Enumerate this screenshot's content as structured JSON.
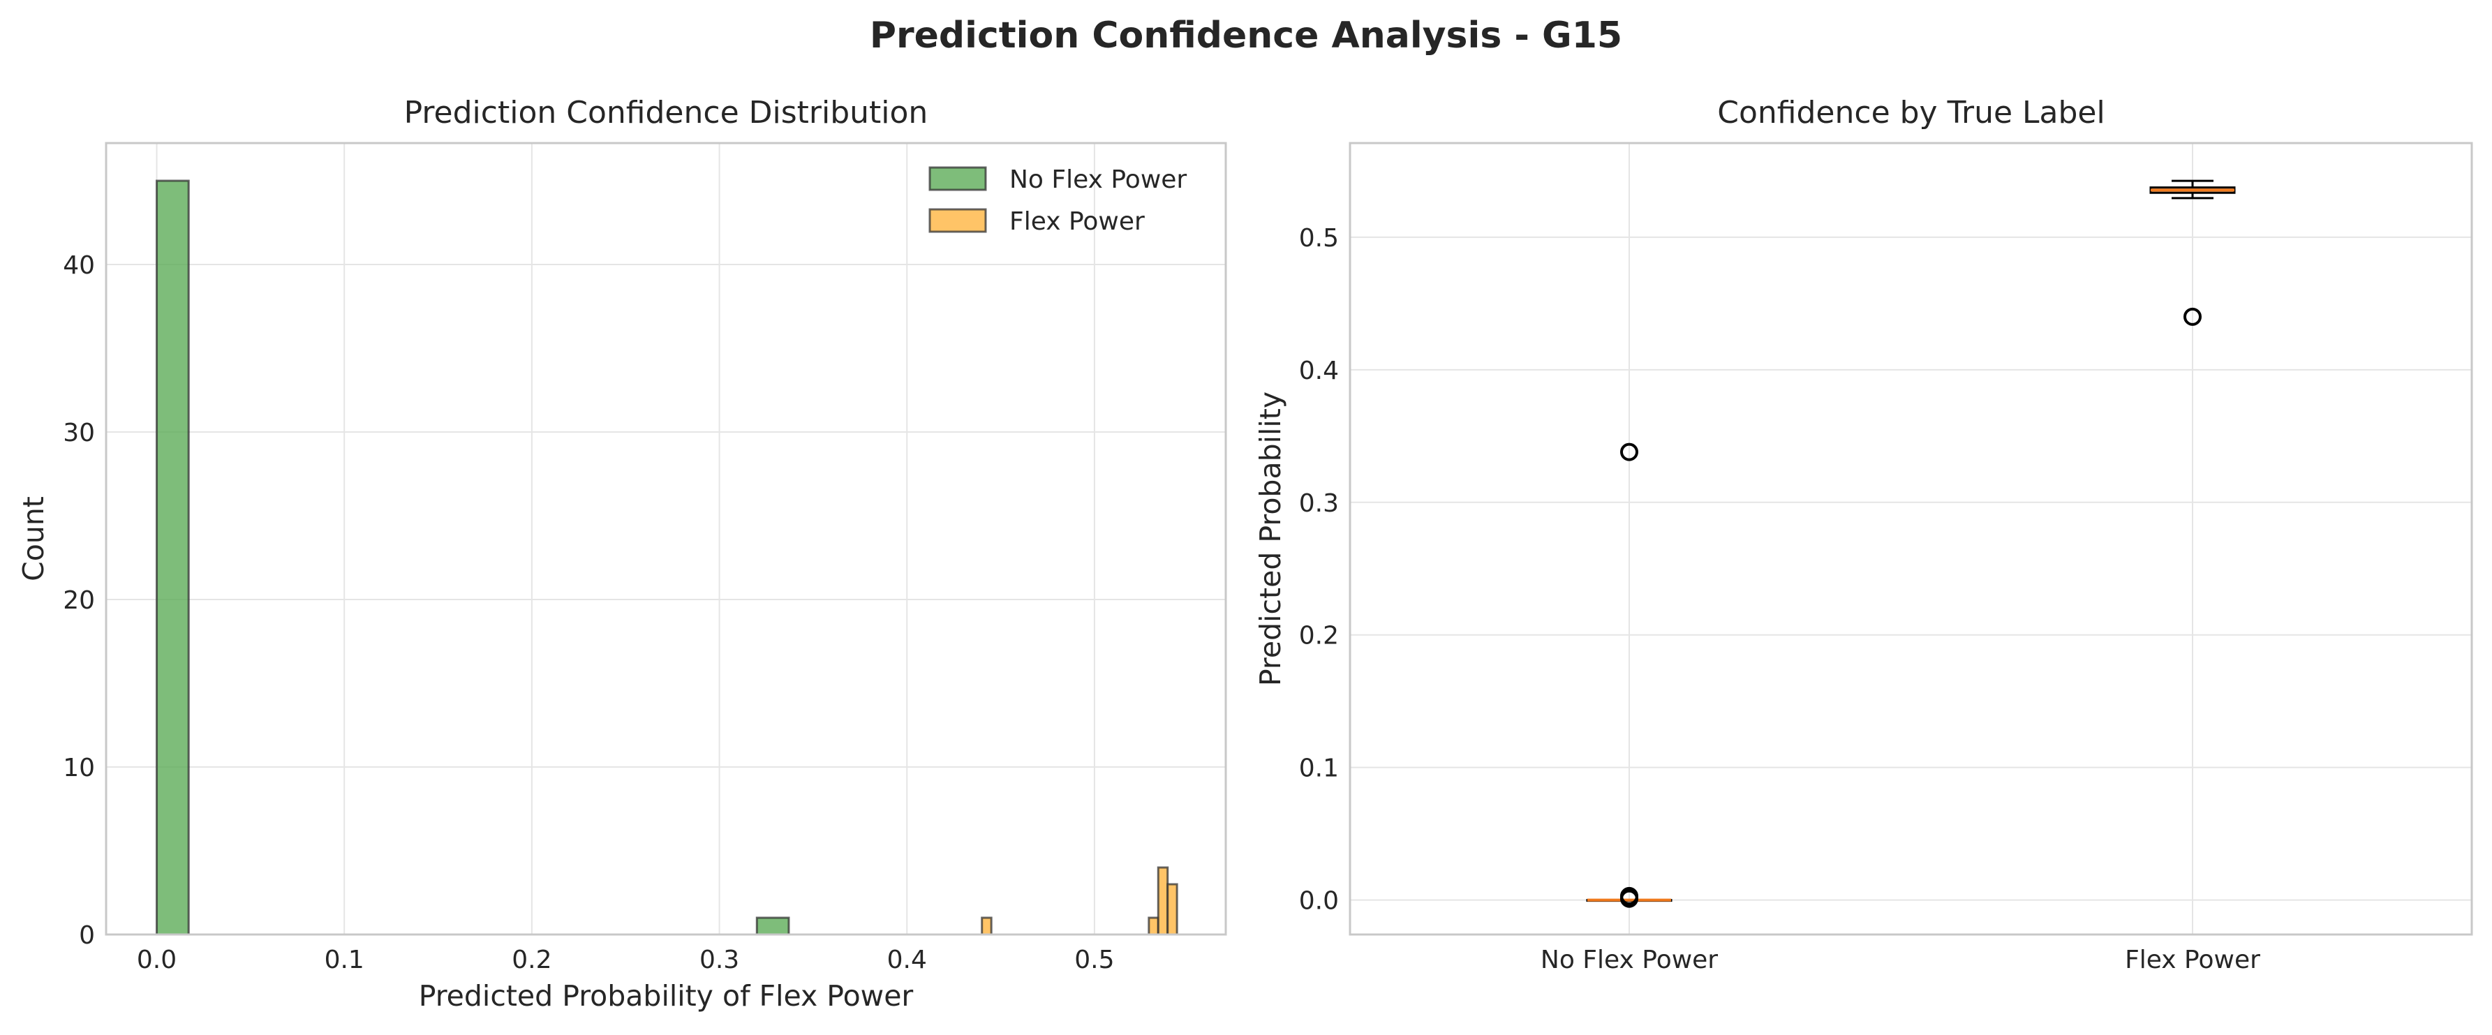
{
  "figure": {
    "suptitle": "Prediction Confidence Analysis - G15"
  },
  "colors": {
    "no_flex": "#5aaa55",
    "flex": "#ffb43c",
    "median": "#f07a1e",
    "box_fill": "#f4c08e"
  },
  "chart_data": [
    {
      "type": "bar",
      "subtype": "histogram",
      "title": "Prediction Confidence Distribution",
      "xlabel": "Predicted Probability of Flex Power",
      "ylabel": "Count",
      "xlim": [
        -0.027,
        0.57
      ],
      "ylim": [
        0,
        47.25
      ],
      "xticks": [
        0.0,
        0.1,
        0.2,
        0.3,
        0.4,
        0.5
      ],
      "xtick_labels": [
        "0.0",
        "0.1",
        "0.2",
        "0.3",
        "0.4",
        "0.5"
      ],
      "yticks": [
        0,
        10,
        20,
        30,
        40
      ],
      "ytick_labels": [
        "0",
        "10",
        "20",
        "30",
        "40"
      ],
      "grid": true,
      "legend_position": "top-right",
      "series": [
        {
          "name": "No Flex Power",
          "bins": [
            {
              "x0": 0.0,
              "x1": 0.017,
              "count": 45
            },
            {
              "x0": 0.32,
              "x1": 0.337,
              "count": 1
            }
          ]
        },
        {
          "name": "Flex Power",
          "bins": [
            {
              "x0": 0.44,
              "x1": 0.445,
              "count": 1
            },
            {
              "x0": 0.529,
              "x1": 0.534,
              "count": 1
            },
            {
              "x0": 0.534,
              "x1": 0.539,
              "count": 4
            },
            {
              "x0": 0.539,
              "x1": 0.544,
              "count": 3
            }
          ]
        }
      ]
    },
    {
      "type": "box",
      "title": "Confidence by True Label",
      "xlabel": "",
      "ylabel": "Predicted Probability",
      "ylim": [
        -0.026,
        0.571
      ],
      "yticks": [
        0.0,
        0.1,
        0.2,
        0.3,
        0.4,
        0.5
      ],
      "ytick_labels": [
        "0.0",
        "0.1",
        "0.2",
        "0.3",
        "0.4",
        "0.5"
      ],
      "categories": [
        "No Flex Power",
        "Flex Power"
      ],
      "grid": true,
      "boxes": [
        {
          "category": "No Flex Power",
          "q1": 0.0,
          "median": 0.0,
          "q3": 0.0,
          "whisker_low": 0.0,
          "whisker_high": 0.0,
          "outliers": [
            0.338,
            0.003,
            0.002,
            0.001
          ]
        },
        {
          "category": "Flex Power",
          "q1": 0.5335,
          "median": 0.5355,
          "q3": 0.5375,
          "whisker_low": 0.5295,
          "whisker_high": 0.5425,
          "outliers": [
            0.44
          ]
        }
      ]
    }
  ]
}
